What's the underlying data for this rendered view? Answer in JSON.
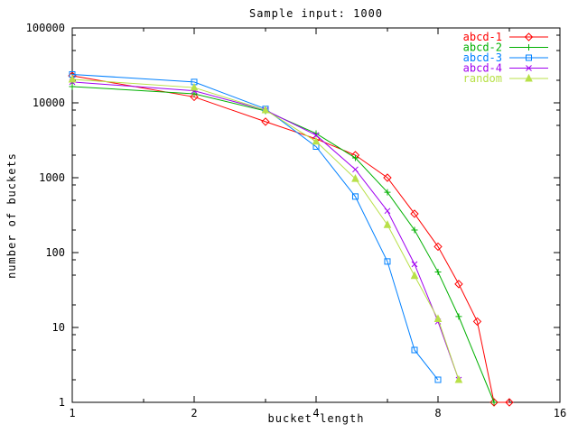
{
  "chart_data": {
    "type": "line",
    "title": "Sample input: 1000",
    "xlabel": "bucket length",
    "ylabel": "number of buckets",
    "x_scale": "log2",
    "y_scale": "log10",
    "xlim": [
      1,
      16
    ],
    "ylim": [
      1,
      100000
    ],
    "x_ticks": [
      1,
      2,
      4,
      8,
      16
    ],
    "x_minor_ticks": [
      1.5,
      3,
      6,
      12
    ],
    "y_ticks": [
      1,
      10,
      100,
      1000,
      10000,
      100000
    ],
    "y_minor_ticks": [
      2,
      5,
      8,
      20,
      50,
      80,
      200,
      500,
      800,
      2000,
      5000,
      8000,
      20000,
      50000,
      80000
    ],
    "grid": false,
    "legend_position": "top-right-inside",
    "axis_color": "#000000",
    "series": [
      {
        "name": "abcd-1",
        "color": "#ff0000",
        "marker": "diamond",
        "points": [
          [
            1,
            23000
          ],
          [
            2,
            12000
          ],
          [
            3,
            5600
          ],
          [
            4,
            3300
          ],
          [
            5,
            2000
          ],
          [
            6,
            1000
          ],
          [
            7,
            330
          ],
          [
            8,
            120
          ],
          [
            9,
            38
          ],
          [
            10,
            12
          ],
          [
            11,
            1
          ],
          [
            12,
            1
          ]
        ]
      },
      {
        "name": "abcd-2",
        "color": "#00b000",
        "marker": "plus",
        "points": [
          [
            1,
            16500
          ],
          [
            2,
            13200
          ],
          [
            3,
            7800
          ],
          [
            4,
            3900
          ],
          [
            5,
            1840
          ],
          [
            6,
            640
          ],
          [
            7,
            200
          ],
          [
            8,
            55
          ],
          [
            9,
            14
          ],
          [
            11,
            1
          ]
        ]
      },
      {
        "name": "abcd-3",
        "color": "#0080ff",
        "marker": "square",
        "points": [
          [
            1,
            24000
          ],
          [
            2,
            19000
          ],
          [
            3,
            8300
          ],
          [
            4,
            2600
          ],
          [
            5,
            560
          ],
          [
            6,
            76
          ],
          [
            7,
            5
          ],
          [
            8,
            2
          ]
        ]
      },
      {
        "name": "abcd-4",
        "color": "#a000f0",
        "marker": "x",
        "points": [
          [
            1,
            19000
          ],
          [
            2,
            14500
          ],
          [
            3,
            8000
          ],
          [
            4,
            3700
          ],
          [
            5,
            1290
          ],
          [
            6,
            360
          ],
          [
            7,
            70
          ],
          [
            8,
            12
          ],
          [
            9,
            2
          ]
        ]
      },
      {
        "name": "random",
        "color": "#b8e048",
        "marker": "triangle",
        "points": [
          [
            1,
            20600
          ],
          [
            2,
            16000
          ],
          [
            3,
            8000
          ],
          [
            4,
            3050
          ],
          [
            5,
            970
          ],
          [
            6,
            235
          ],
          [
            7,
            49
          ],
          [
            8,
            13
          ],
          [
            9,
            2
          ]
        ]
      }
    ]
  }
}
